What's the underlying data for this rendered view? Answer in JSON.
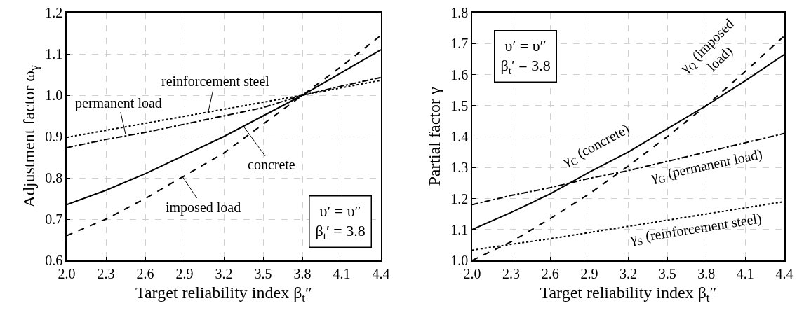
{
  "chart_data": [
    {
      "type": "line",
      "xlabel": "Target reliability index β$_{t}$″",
      "ylabel": "Adjustment factor ω$_{γ}$",
      "x": [
        2.0,
        2.3,
        2.6,
        2.9,
        3.2,
        3.5,
        3.8,
        4.1,
        4.4
      ],
      "series": [
        {
          "color": "#000000",
          "line_style": "solid",
          "values": [
            0.735,
            0.77,
            0.81,
            0.855,
            0.9,
            0.95,
            1.0,
            1.055,
            1.11
          ]
        },
        {
          "color": "#000000",
          "line_style": "dashed",
          "values": [
            0.66,
            0.7,
            0.75,
            0.805,
            0.86,
            0.93,
            1.0,
            1.07,
            1.145
          ]
        },
        {
          "color": "#000000",
          "line_style": "dotted",
          "values": [
            0.898,
            0.915,
            0.932,
            0.949,
            0.966,
            0.983,
            1.0,
            1.018,
            1.036
          ]
        },
        {
          "color": "#000000",
          "line_style": "dashdot",
          "values": [
            0.873,
            0.893,
            0.91,
            0.93,
            0.95,
            0.97,
            1.0,
            1.022,
            1.043
          ]
        }
      ],
      "annotations": [
        {
          "text": "concrete",
          "x": 3.35,
          "y": 0.925
        },
        {
          "text": "imposed load",
          "x": 2.88,
          "y": 0.805
        },
        {
          "text": "reinforcement steel",
          "x": 3.08,
          "y": 0.958
        },
        {
          "text": "permanent load",
          "x": 2.45,
          "y": 0.905
        },
        "υ′ = υ″\nβ$_{t}$′ = 3.8"
      ],
      "xlim": [
        2.0,
        4.4
      ],
      "xticks": [
        {
          "value": 2.0,
          "label": "2.0"
        },
        2.3,
        2.6,
        2.9,
        3.2,
        3.5,
        3.8,
        4.1,
        4.4
      ],
      "ylim": [
        0.6,
        1.2
      ],
      "yticks": [
        0.6,
        0.7,
        0.8,
        0.9,
        {
          "value": 1.0,
          "label": "1.0"
        },
        1.1,
        1.2
      ],
      "grid": true
    },
    {
      "type": "line",
      "xlabel": "Target reliability index β$_{t}$″",
      "ylabel": "Partial factor γ",
      "x": [
        2.0,
        2.3,
        2.6,
        2.9,
        3.2,
        3.5,
        3.8,
        4.1,
        4.4
      ],
      "series": [
        {
          "color": "#000000",
          "line_style": "solid",
          "values": [
            1.1,
            1.155,
            1.215,
            1.285,
            1.35,
            1.425,
            1.5,
            1.58,
            1.665
          ]
        },
        {
          "color": "#000000",
          "line_style": "dashed",
          "values": [
            1.0,
            1.06,
            1.135,
            1.215,
            1.305,
            1.4,
            1.5,
            1.61,
            1.725
          ]
        },
        {
          "color": "#000000",
          "line_style": "dotted",
          "values": [
            1.033,
            1.052,
            1.07,
            1.09,
            1.11,
            1.13,
            1.15,
            1.17,
            1.19
          ]
        },
        {
          "color": "#000000",
          "line_style": "dashdot",
          "values": [
            1.18,
            1.21,
            1.235,
            1.265,
            1.29,
            1.32,
            1.35,
            1.38,
            1.41
          ]
        }
      ],
      "annotations": [
        "γ$_{C}$ (concrete)",
        "γ$_{Q}$ (imposed\nload)",
        "γ$_{S}$ (reinforcement steel)",
        "γ$_{G}$ (permanent load)",
        "υ′ = υ″\nβ$_{t}$′ = 3.8"
      ],
      "xlim": [
        2.0,
        4.4
      ],
      "xticks": [
        {
          "value": 2.0,
          "label": "2.0"
        },
        2.3,
        2.6,
        2.9,
        3.2,
        3.5,
        3.8,
        4.1,
        4.4
      ],
      "ylim": [
        1.0,
        1.8
      ],
      "yticks": [
        {
          "value": 1.0,
          "label": "1.0"
        },
        1.1,
        1.2,
        1.3,
        1.4,
        1.5,
        1.6,
        1.7,
        1.8
      ],
      "grid": true
    }
  ]
}
